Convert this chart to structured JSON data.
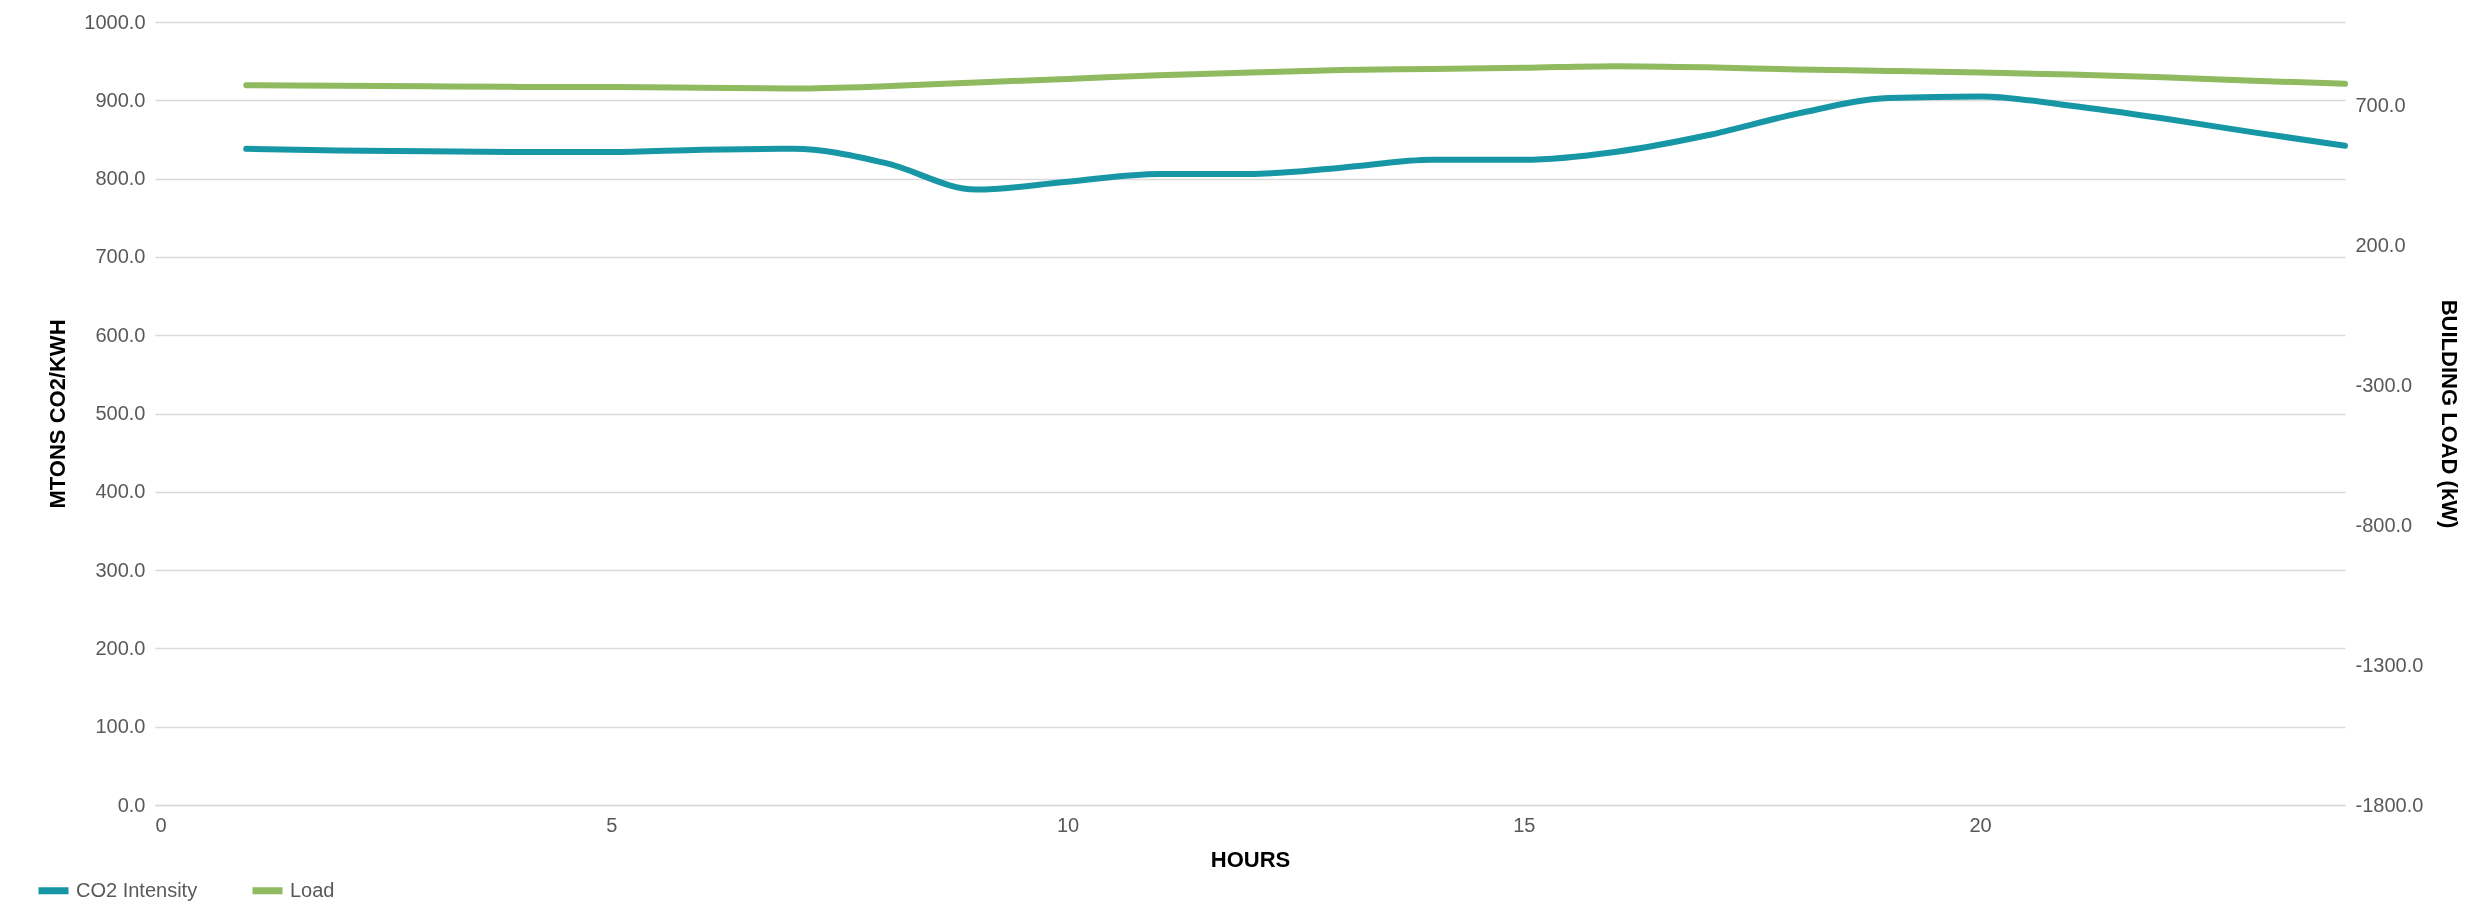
{
  "chart_data": {
    "type": "line",
    "xlabel": "HOURS",
    "ylabel": "MTONS CO2/KWH",
    "y2label": "BUILDING LOAD (kW)",
    "x": [
      1,
      2,
      3,
      4,
      5,
      6,
      7,
      8,
      9,
      10,
      11,
      12,
      13,
      14,
      15,
      16,
      17,
      18,
      19,
      20,
      21,
      22,
      23,
      24
    ],
    "series": [
      {
        "name": "CO2 Intensity",
        "color": "#1797a6",
        "values": [
          838,
          836,
          835,
          834,
          834,
          837,
          838,
          820,
          786,
          796,
          806,
          806,
          814,
          824,
          824,
          834,
          855,
          883,
          903,
          905,
          893,
          877,
          859,
          842
        ]
      },
      {
        "name": "Load",
        "color": "#8fba5f",
        "axis": "y2",
        "values": [
          774,
          772,
          770,
          768,
          768,
          765,
          762,
          770,
          784,
          796,
          810,
          819,
          828,
          832,
          836,
          842,
          838,
          830,
          825,
          819,
          812,
          802,
          790,
          779
        ]
      }
    ],
    "xlim": [
      0,
      24
    ],
    "xticks": [
      0,
      5,
      10,
      15,
      20
    ],
    "ylim": [
      0,
      1000
    ],
    "yticks": [
      {
        "value": 0,
        "label": "0.0"
      },
      {
        "value": 100,
        "label": "100.0"
      },
      {
        "value": 200,
        "label": "200.0"
      },
      {
        "value": 300,
        "label": "300.0"
      },
      {
        "value": 400,
        "label": "400.0"
      },
      {
        "value": 500,
        "label": "500.0"
      },
      {
        "value": 600,
        "label": "600.0"
      },
      {
        "value": 700,
        "label": "700.0"
      },
      {
        "value": 800,
        "label": "800.0"
      },
      {
        "value": 900,
        "label": "900.0"
      },
      {
        "value": 1000,
        "label": "1000.0"
      }
    ],
    "y2lim": [
      -1800,
      1000
    ],
    "y2ticks": [
      {
        "value": -1800,
        "label": "-1800.0"
      },
      {
        "value": -1300,
        "label": "-1300.0"
      },
      {
        "value": -800,
        "label": "-800.0"
      },
      {
        "value": -300,
        "label": "-300.0"
      },
      {
        "value": 200,
        "label": "200.0"
      },
      {
        "value": 700,
        "label": "700.0"
      }
    ],
    "grid": "y",
    "legend": "bottom left",
    "marker": "none",
    "line_style": "solid"
  }
}
